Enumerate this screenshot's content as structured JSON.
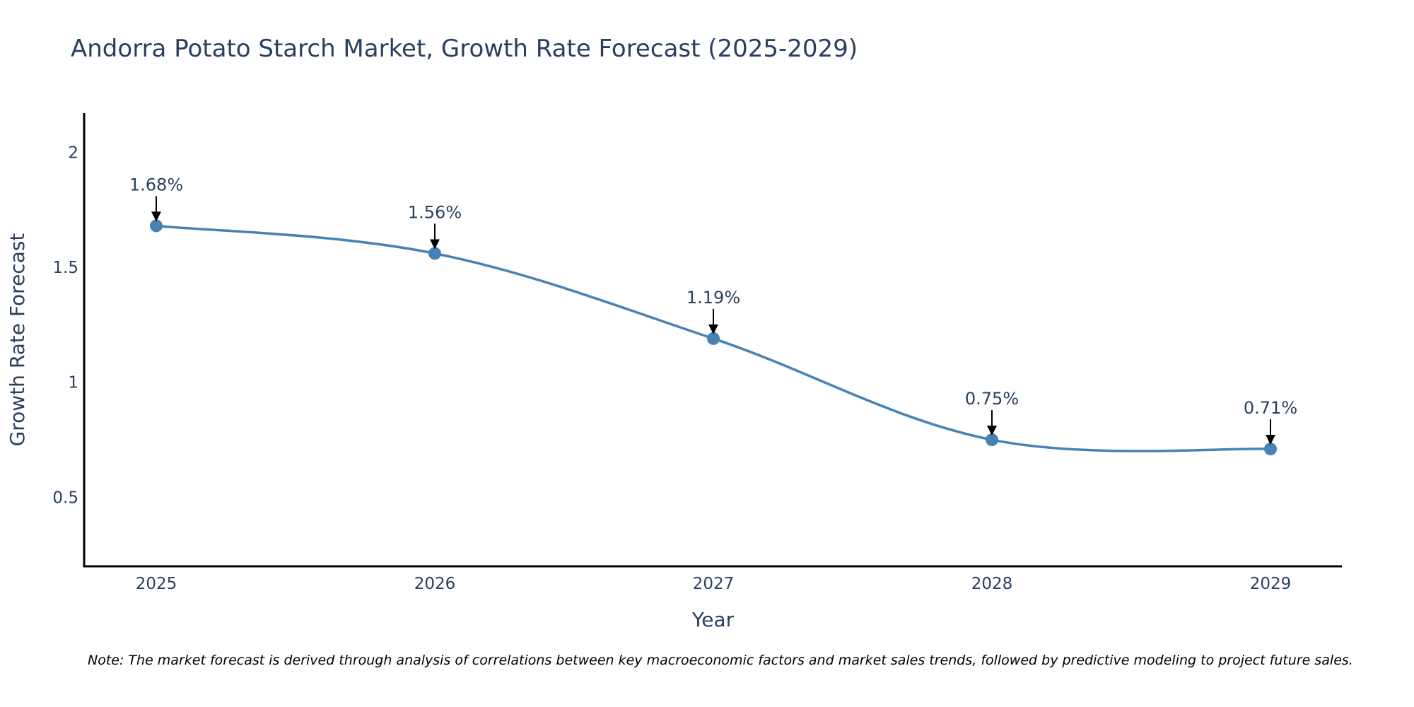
{
  "chart_data": {
    "type": "line",
    "title": "Andorra Potato Starch Market, Growth Rate Forecast (2025-2029)",
    "xlabel": "Year",
    "ylabel": "Growth Rate Forecast",
    "categories": [
      "2025",
      "2026",
      "2027",
      "2028",
      "2029"
    ],
    "series": [
      {
        "name": "Growth Rate Forecast",
        "values": [
          1.68,
          1.56,
          1.19,
          0.75,
          0.71
        ],
        "labels": [
          "1.68%",
          "1.56%",
          "1.19%",
          "0.75%",
          "0.71%"
        ],
        "color": "#4682b4"
      }
    ],
    "yticks": [
      "0.5",
      "1",
      "1.5",
      "2"
    ],
    "ylim": [
      0.2,
      2.17
    ],
    "grid": false,
    "note": "Note: The market forecast is derived through analysis of correlations between key macroeconomic factors and market sales trends, followed by predictive modeling to project future sales."
  }
}
